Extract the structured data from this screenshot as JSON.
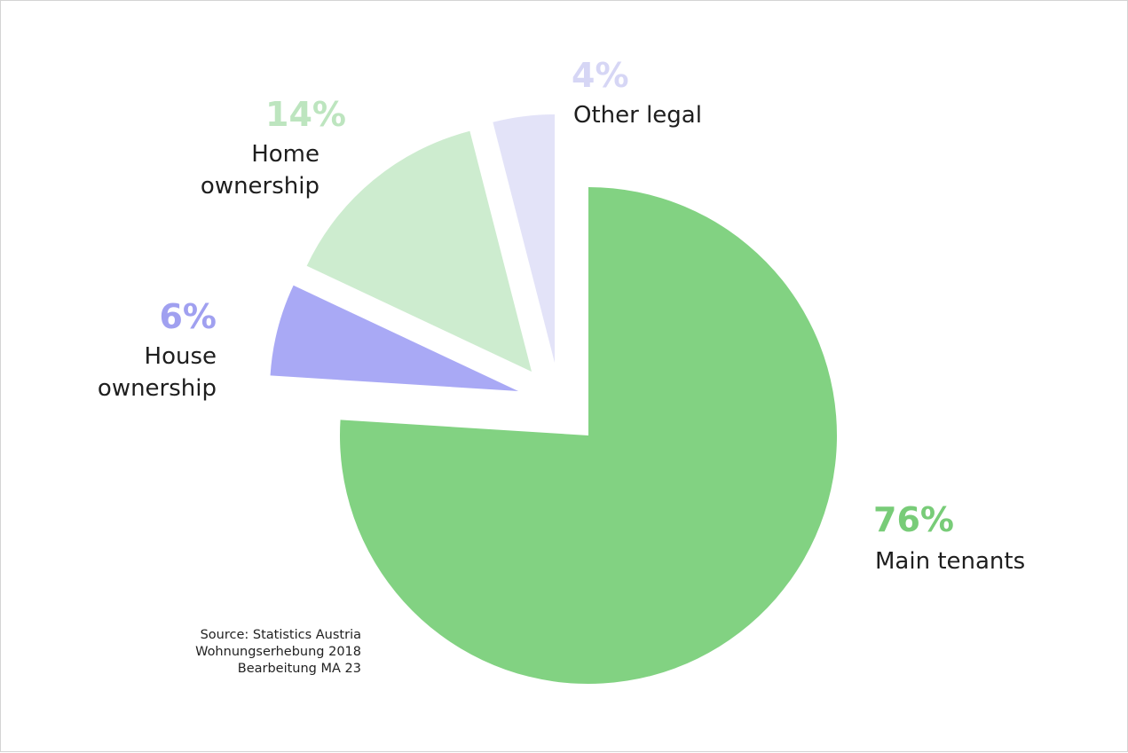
{
  "chart_data": {
    "type": "pie",
    "categories": [
      "Main tenants",
      "House ownership",
      "Home ownership",
      "Other legal"
    ],
    "values": [
      76,
      6,
      14,
      4
    ],
    "value_labels": [
      "76%",
      "6%",
      "14%",
      "4%"
    ],
    "colors": [
      "#82d282",
      "#a9a9f5",
      "#cdeccf",
      "#e3e3f8"
    ],
    "label_colors": [
      "#78cc78",
      "#a0a0f0",
      "#bde5bf",
      "#d6d6f5"
    ],
    "source": [
      "Source: Statistics Austria",
      "Wohnungserhebung 2018",
      "Bearbeitung MA 23"
    ]
  }
}
